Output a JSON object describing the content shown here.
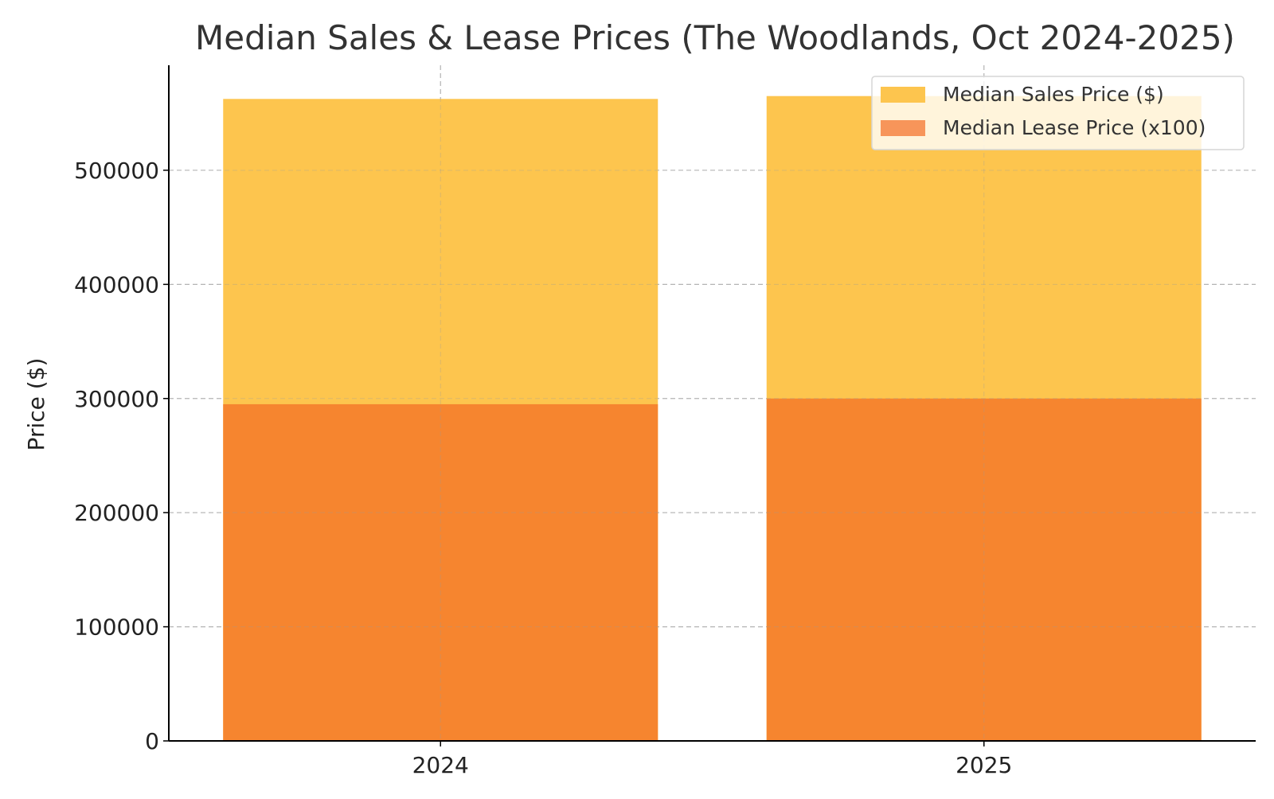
{
  "chart_data": {
    "type": "bar",
    "title": "Median Sales & Lease Prices (The Woodlands, Oct 2024-2025)",
    "xlabel": "",
    "ylabel": "Price ($)",
    "categories": [
      "2024",
      "2025"
    ],
    "series": [
      {
        "name": "Median Sales Price ($)",
        "values": [
          562500,
          565000
        ],
        "color": "#fdc54e"
      },
      {
        "name": "Median Lease Price (x100)",
        "values": [
          295000,
          300000
        ],
        "color": "#f6852f",
        "legend_color": "#f7955a"
      }
    ],
    "overlay": true,
    "ylim": [
      0,
      592000
    ],
    "yticks": [
      0,
      100000,
      200000,
      300000,
      400000,
      500000
    ],
    "yticklabels": [
      "0",
      "100000",
      "200000",
      "300000",
      "400000",
      "500000"
    ],
    "grid": true,
    "legend": "top-right"
  }
}
